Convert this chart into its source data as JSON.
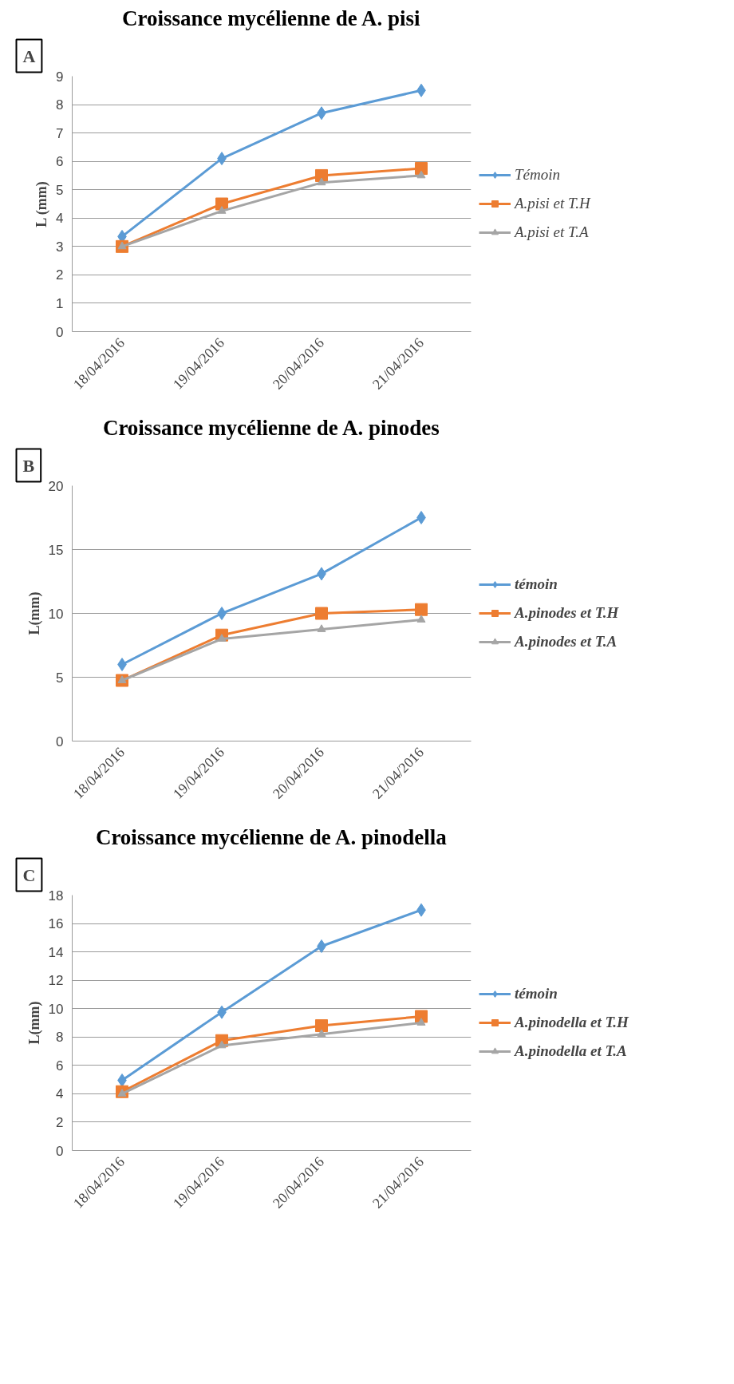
{
  "chart_data": [
    {
      "type": "line",
      "title": "Croissance mycélienne de A. pisi",
      "ylabel": "L (mm)",
      "annotations": [
        "A"
      ],
      "categories": [
        "18/04/2016",
        "19/04/2016",
        "20/04/2016",
        "21/04/2016"
      ],
      "ylim": [
        0,
        9
      ],
      "yticks": [
        0,
        1,
        2,
        3,
        4,
        5,
        6,
        7,
        8,
        9
      ],
      "grid": "y",
      "legend": "right",
      "series": [
        {
          "name": "Témoin",
          "color": "#5b9bd5",
          "marker": "diamond",
          "values": [
            3.35,
            6.1,
            7.7,
            8.5
          ]
        },
        {
          "name": "A.pisi et T.H",
          "color": "#ed7d31",
          "marker": "square",
          "values": [
            3.0,
            4.5,
            5.5,
            5.75
          ]
        },
        {
          "name": "A.pisi et T.A",
          "color": "#a5a5a5",
          "marker": "triangle",
          "values": [
            3.0,
            4.25,
            5.25,
            5.5
          ]
        }
      ]
    },
    {
      "type": "line",
      "title": "Croissance mycélienne de A. pinodes",
      "ylabel": "L(mm)",
      "annotations": [
        "B"
      ],
      "categories": [
        "18/04/2016",
        "19/04/2016",
        "20/04/2016",
        "21/04/2016"
      ],
      "ylim": [
        0,
        20
      ],
      "yticks": [
        0,
        5,
        10,
        15,
        20
      ],
      "grid": "y",
      "legend": "right",
      "series": [
        {
          "name": "témoin",
          "color": "#5b9bd5",
          "marker": "diamond",
          "values": [
            6,
            10,
            13.1,
            17.5
          ]
        },
        {
          "name": "A.pinodes et T.H",
          "color": "#ed7d31",
          "marker": "square",
          "values": [
            4.75,
            8.3,
            10,
            10.3
          ]
        },
        {
          "name": "A.pinodes et T.A",
          "color": "#a5a5a5",
          "marker": "triangle",
          "values": [
            4.75,
            8,
            8.75,
            9.5
          ]
        }
      ]
    },
    {
      "type": "line",
      "title": "Croissance mycélienne de A. pinodella",
      "ylabel": "L(mm)",
      "annotations": [
        "C"
      ],
      "categories": [
        "18/04/2016",
        "19/04/2016",
        "20/04/2016",
        "21/04/2016"
      ],
      "ylim": [
        0,
        18
      ],
      "yticks": [
        0,
        2,
        4,
        6,
        8,
        10,
        12,
        14,
        16,
        18
      ],
      "grid": "y",
      "legend": "right",
      "series": [
        {
          "name": "témoin",
          "color": "#5b9bd5",
          "marker": "diamond",
          "values": [
            4.95,
            9.75,
            14.4,
            16.95
          ]
        },
        {
          "name": "A.pinodella et T.H",
          "color": "#ed7d31",
          "marker": "square",
          "values": [
            4.15,
            7.75,
            8.8,
            9.45
          ]
        },
        {
          "name": "A.pinodella et T.A",
          "color": "#a5a5a5",
          "marker": "triangle",
          "values": [
            4.0,
            7.4,
            8.2,
            9.0
          ]
        }
      ]
    }
  ]
}
